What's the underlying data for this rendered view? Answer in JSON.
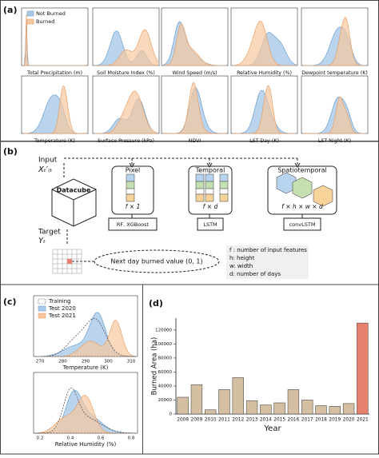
{
  "panels": {
    "a": {
      "label": "(a)",
      "legend": [
        "Not Burned",
        "Burned"
      ],
      "plots": [
        {
          "xlabel": "Total Precipitation (m)"
        },
        {
          "xlabel": "Soil Moisture Index (%)"
        },
        {
          "xlabel": "Wind Speed (m/s)"
        },
        {
          "xlabel": "Relative Humidity (%)"
        },
        {
          "xlabel": "Dewpoint temperature (K)"
        },
        {
          "xlabel": "Temperature (K)"
        },
        {
          "xlabel": "Surface Pressure (kPa)"
        },
        {
          "xlabel": "NDVI"
        },
        {
          "xlabel": "LST Day (K)"
        },
        {
          "xlabel": "LST Night (K)"
        }
      ]
    },
    "b": {
      "label": "(b)",
      "input": "Input",
      "input_var": "Xₜ′₍ₜ",
      "datacube": "Datacube",
      "target": "Target",
      "target_var": "Yₜ",
      "models": [
        {
          "title": "Pixel",
          "shape": "f × 1",
          "method": "RF, XGBoost"
        },
        {
          "title": "Temporal",
          "shape": "f × d",
          "method": "LSTM"
        },
        {
          "title": "Spatiotemporal",
          "shape": "f × h × w × d",
          "method": "convLSTM"
        }
      ],
      "next_day": "Next day burned value (0, 1)",
      "legend": [
        "f : number of input features",
        "h: height",
        "w: width",
        "d: number of days"
      ]
    },
    "c": {
      "label": "(c)",
      "legend": [
        "Training",
        "Test 2020",
        "Test 2021"
      ],
      "top_xlabel": "Temperature (K)",
      "top_ticks": [
        "270",
        "280",
        "290",
        "300",
        "310"
      ],
      "bottom_xlabel": "Relative Humidity (%)",
      "bottom_ticks": [
        "0.2",
        "0.4",
        "0.6",
        "0.8"
      ]
    }
  },
  "chart_data": {
    "type": "bar",
    "label": "(d)",
    "ylabel": "Burned Area (ha)",
    "xlabel": "Year",
    "categories": [
      "2008",
      "2009",
      "2010",
      "2011",
      "2012",
      "2013",
      "2014",
      "2015",
      "2016",
      "2017",
      "2018",
      "2019",
      "2020",
      "2021"
    ],
    "values": [
      24000,
      42000,
      6000,
      35000,
      52000,
      19000,
      13000,
      16000,
      35000,
      20000,
      12000,
      11000,
      15000,
      130000
    ],
    "colors": [
      "#d4bfa3",
      "#d4bfa3",
      "#d4bfa3",
      "#d4bfa3",
      "#d4bfa3",
      "#d4bfa3",
      "#d4bfa3",
      "#d4bfa3",
      "#d4bfa3",
      "#d4bfa3",
      "#d4bfa3",
      "#d4bfa3",
      "#d4bfa3",
      "#e8806e"
    ],
    "ylim": [
      0,
      137000
    ],
    "yticks": [
      0,
      20000,
      40000,
      60000,
      80000,
      100000,
      120000
    ]
  }
}
